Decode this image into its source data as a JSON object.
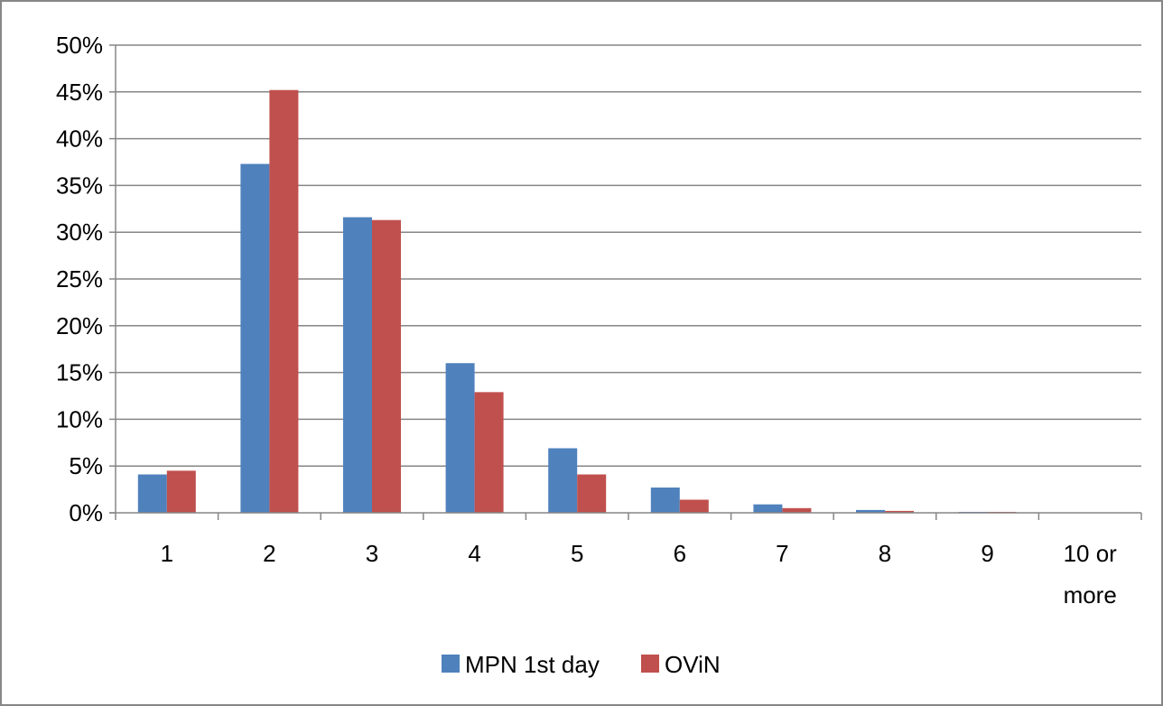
{
  "chart_data": {
    "type": "bar",
    "categories": [
      "1",
      "2",
      "3",
      "4",
      "5",
      "6",
      "7",
      "8",
      "9",
      "10 or more"
    ],
    "category_lines": [
      [
        "1"
      ],
      [
        "2"
      ],
      [
        "3"
      ],
      [
        "4"
      ],
      [
        "5"
      ],
      [
        "6"
      ],
      [
        "7"
      ],
      [
        "8"
      ],
      [
        "9"
      ],
      [
        "10 or",
        "more"
      ]
    ],
    "series": [
      {
        "name": "MPN 1st day",
        "color": "#4f81bd",
        "values": [
          4.1,
          37.3,
          31.6,
          16.0,
          6.9,
          2.7,
          0.9,
          0.3,
          0.1,
          0.0
        ]
      },
      {
        "name": "OViN",
        "color": "#c0504d",
        "values": [
          4.5,
          45.2,
          31.3,
          12.9,
          4.1,
          1.4,
          0.5,
          0.2,
          0.1,
          0.0
        ]
      }
    ],
    "y_ticks": [
      "0%",
      "5%",
      "10%",
      "15%",
      "20%",
      "25%",
      "30%",
      "35%",
      "40%",
      "45%",
      "50%"
    ],
    "ylim": [
      0,
      50
    ],
    "y_unit": "%",
    "grid": true,
    "legend_position": "bottom",
    "title": "",
    "xlabel": "",
    "ylabel": ""
  }
}
